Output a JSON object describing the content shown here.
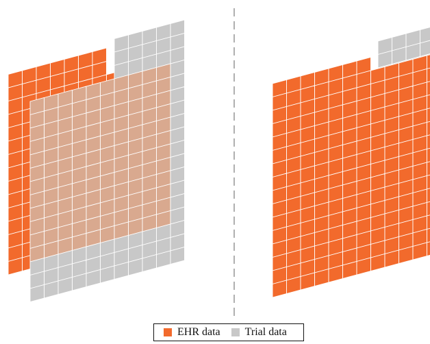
{
  "colors": {
    "ehr": "#F26A2C",
    "trial": "#C8C8C8",
    "overlap": "#D9A98F",
    "grid": "#FFFFFF",
    "divider": "#7A7A7A"
  },
  "legend": {
    "ehr_label": "EHR data",
    "trial_label": "Trial data"
  }
}
